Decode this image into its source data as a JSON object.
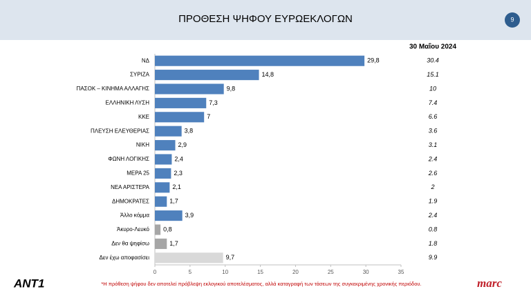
{
  "page_number": "9",
  "chart_data": {
    "type": "bar",
    "orientation": "horizontal",
    "title": "ΠΡΟΘΕΣΗ ΨΗΦΟΥ ΕΥΡΩΕΚΛΟΓΩΝ",
    "categories": [
      "ΝΔ",
      "ΣΥΡΙΖΑ",
      "ΠΑΣΟΚ – ΚΙΝΗΜΑ ΑΛΛΑΓΗΣ",
      "ΕΛΛΗΝΙΚΗ ΛΥΣΗ",
      "ΚΚΕ",
      "ΠΛΕΥΣΗ ΕΛΕΥΘΕΡΙΑΣ",
      "ΝΙΚΗ",
      "ΦΩΝΗ ΛΟΓΙΚΗΣ",
      "ΜΕΡΑ 25",
      "ΝΕΑ ΑΡΙΣΤΕΡΑ",
      "ΔΗΜΟΚΡΑΤΕΣ",
      "Άλλο κόμμα",
      "Άκυρο-Λευκό",
      "Δεν θα ψηφίσω",
      "Δεν έχω αποφασίσει"
    ],
    "values": [
      29.8,
      14.8,
      9.8,
      7.3,
      7,
      3.8,
      2.9,
      2.4,
      2.3,
      2.1,
      1.7,
      3.9,
      0.8,
      1.7,
      9.7
    ],
    "value_labels": [
      "29,8",
      "14,8",
      "9,8",
      "7,3",
      "7",
      "3,8",
      "2,9",
      "2,4",
      "2,3",
      "2,1",
      "1,7",
      "3,9",
      "0,8",
      "1,7",
      "9,7"
    ],
    "colors": [
      "#4f81bd",
      "#4f81bd",
      "#4f81bd",
      "#4f81bd",
      "#4f81bd",
      "#4f81bd",
      "#4f81bd",
      "#4f81bd",
      "#4f81bd",
      "#4f81bd",
      "#4f81bd",
      "#4f81bd",
      "#a6a6a6",
      "#a6a6a6",
      "#d9d9d9"
    ],
    "xlim": [
      0,
      35
    ],
    "xticks": [
      0,
      5,
      10,
      15,
      20,
      25,
      30,
      35
    ],
    "comparison": {
      "name": "30 Μαΐου 2024",
      "values": [
        30.4,
        15.1,
        10,
        7.4,
        6.6,
        3.6,
        3.1,
        2.4,
        2.6,
        2,
        1.9,
        2.4,
        0.8,
        1.8,
        9.9
      ]
    }
  },
  "footer": {
    "left_logo": "ΑΝΤ1",
    "note": "*Η πρόθεση ψήφου δεν αποτελεί πρόβλεψη εκλογικού αποτελέσματος, αλλά καταγραφή των τάσεων της συγκεκριμένης χρονικής περιόδου.",
    "right_logo": "marc"
  }
}
